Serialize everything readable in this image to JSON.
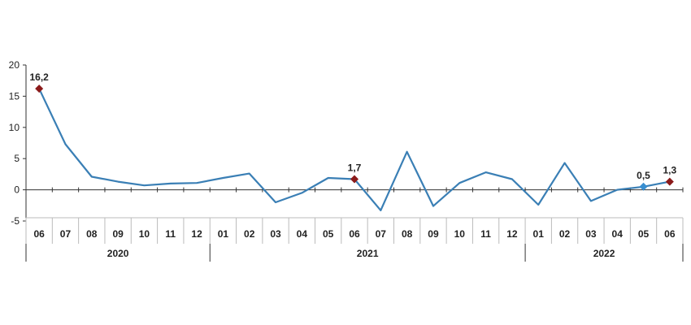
{
  "chart_data": {
    "type": "line",
    "title": "",
    "xlabel": "",
    "ylabel": "",
    "ylim": [
      -5,
      20
    ],
    "yticks": [
      -5,
      0,
      5,
      10,
      15,
      20
    ],
    "ytick_labels": [
      "-5",
      "0",
      "5",
      "10",
      "15",
      "20"
    ],
    "grid": false,
    "categories": [
      "06",
      "07",
      "08",
      "09",
      "10",
      "11",
      "12",
      "01",
      "02",
      "03",
      "04",
      "05",
      "06",
      "07",
      "08",
      "09",
      "10",
      "11",
      "12",
      "01",
      "02",
      "03",
      "04",
      "05",
      "06"
    ],
    "year_groups": [
      {
        "label": "2020",
        "start": 0,
        "end": 6
      },
      {
        "label": "2021",
        "start": 7,
        "end": 18
      },
      {
        "label": "2022",
        "start": 19,
        "end": 24
      }
    ],
    "series": [
      {
        "values": [
          16.2,
          7.3,
          2.1,
          1.3,
          0.7,
          1.0,
          1.1,
          1.9,
          2.6,
          -2.0,
          -0.5,
          1.9,
          1.7,
          -3.3,
          6.1,
          -2.6,
          1.1,
          2.8,
          1.7,
          -2.4,
          4.3,
          -1.8,
          0.0,
          0.5,
          1.3
        ],
        "color": "#3a7fb5"
      }
    ],
    "annotations": [
      {
        "index": 0,
        "label": "16,2",
        "marker_color": "#8b1a1a"
      },
      {
        "index": 12,
        "label": "1,7",
        "marker_color": "#8b1a1a"
      },
      {
        "index": 23,
        "label": "0,5",
        "marker_color": "#3a8fd0"
      },
      {
        "index": 24,
        "label": "1,3",
        "marker_color": "#8b1a1a"
      }
    ]
  }
}
